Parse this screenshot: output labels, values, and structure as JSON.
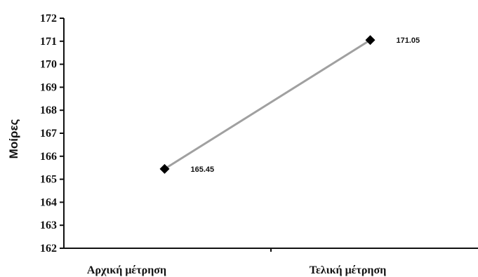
{
  "chart_data": {
    "type": "line",
    "title": "",
    "xlabel": "",
    "ylabel": "Μοίρες",
    "categories": [
      "Αρχική μέτρηση",
      "Τελική μέτρηση"
    ],
    "series": [
      {
        "values": [
          165.45,
          171.05
        ],
        "data_labels": [
          "165.45",
          "171.05"
        ],
        "color": "#a0a0a0",
        "marker": "diamond",
        "marker_color": "#000000"
      }
    ],
    "ylim": [
      162,
      172
    ],
    "yticks": [
      162,
      163,
      164,
      165,
      166,
      167,
      168,
      169,
      170,
      171,
      172
    ],
    "ytick_labels": [
      "162",
      "163",
      "164",
      "165",
      "166",
      "167",
      "168",
      "169",
      "170",
      "171",
      "172"
    ],
    "grid": false,
    "legend": "none"
  }
}
